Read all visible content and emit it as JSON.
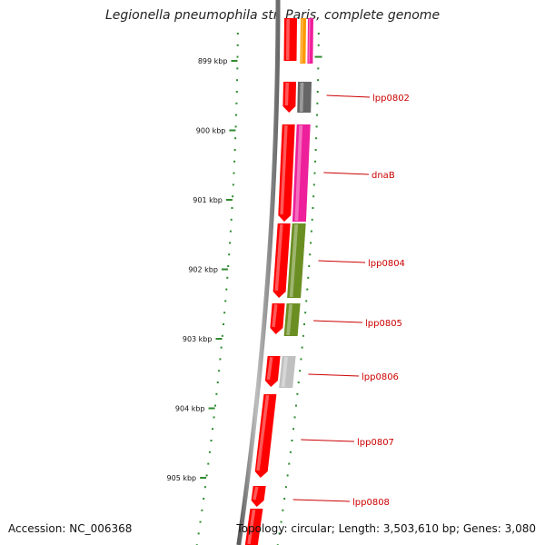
{
  "title": "Legionella pneumophila str. Paris, complete genome",
  "footer": {
    "accession": "Accession: NC_006368",
    "stats": "Topology: circular; Length: 3,503,610 bp; Genes: 3,080"
  },
  "colors": {
    "backbone": "#808080",
    "cds": "#ff0000",
    "gc_dots": "#2e8b2e",
    "label": "#cc0000",
    "track_magenta": "#ee1f9a",
    "track_olive": "#6b8e23",
    "track_orange": "#ff9900",
    "track_dark_gray": "#666666",
    "track_light_gray": "#c0c0c0"
  },
  "scale": {
    "unit": "kbp",
    "ticks": [
      "899 kbp",
      "900 kbp",
      "901 kbp",
      "902 kbp",
      "903 kbp",
      "904 kbp",
      "905 kbp"
    ]
  },
  "gene_labels": [
    "lpp0802",
    "dnaB",
    "lpp0804",
    "lpp0805",
    "lpp0806",
    "lpp0807",
    "lpp0808"
  ],
  "genes": [
    {
      "track": "cds",
      "y0": 20,
      "y1": 67,
      "color": "cds",
      "arrow": false
    },
    {
      "track": "cds",
      "y0": 90,
      "y1": 124,
      "color": "cds",
      "arrow": true
    },
    {
      "track": "cds",
      "y0": 137,
      "y1": 244,
      "color": "cds",
      "arrow": true
    },
    {
      "track": "cds",
      "y0": 246,
      "y1": 328,
      "color": "cds",
      "arrow": true
    },
    {
      "track": "cds",
      "y0": 334,
      "y1": 368,
      "color": "cds",
      "arrow": true
    },
    {
      "track": "cds",
      "y0": 392,
      "y1": 426,
      "color": "cds",
      "arrow": true
    },
    {
      "track": "cds",
      "y0": 434,
      "y1": 526,
      "color": "cds",
      "arrow": true
    },
    {
      "track": "cds",
      "y0": 535,
      "y1": 558,
      "color": "cds",
      "arrow": true
    },
    {
      "track": "cds",
      "y0": 560,
      "y1": 600,
      "color": "cds",
      "arrow": false
    },
    {
      "track": "cog",
      "y0": 20,
      "y1": 70,
      "color": "track_orange",
      "narrow": true
    },
    {
      "track": "cog2",
      "y0": 20,
      "y1": 70,
      "color": "track_magenta",
      "narrow": true
    },
    {
      "track": "cog",
      "y0": 90,
      "y1": 124,
      "color": "track_dark_gray"
    },
    {
      "track": "cog",
      "y0": 137,
      "y1": 244,
      "color": "track_magenta"
    },
    {
      "track": "cog",
      "y0": 246,
      "y1": 328,
      "color": "track_olive"
    },
    {
      "track": "cog",
      "y0": 334,
      "y1": 370,
      "color": "track_olive"
    },
    {
      "track": "cog",
      "y0": 392,
      "y1": 427,
      "color": "track_light_gray"
    }
  ]
}
